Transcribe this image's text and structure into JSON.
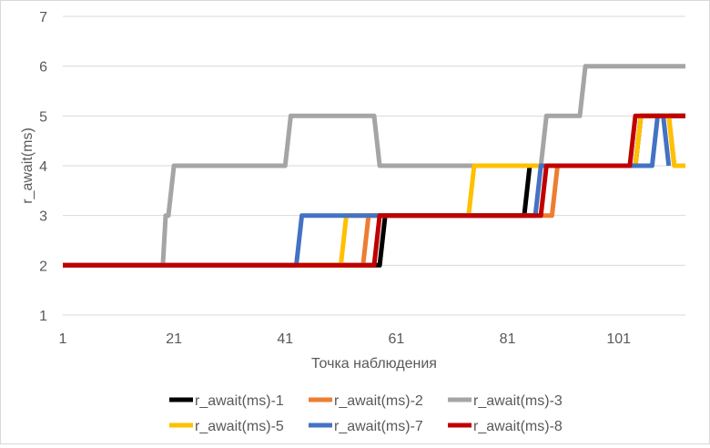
{
  "chart_data": {
    "type": "line",
    "title": "",
    "xlabel": "Точка наблюдения",
    "ylabel": "r_await(ms)",
    "xlim": [
      1,
      113
    ],
    "ylim": [
      1,
      7
    ],
    "x_ticks": [
      1,
      21,
      41,
      61,
      81,
      101
    ],
    "y_ticks": [
      1,
      2,
      3,
      4,
      5,
      6,
      7
    ],
    "grid": "horizontal",
    "legend_position": "bottom",
    "series": [
      {
        "name": "r_await(ms)-1",
        "color": "#000000",
        "points": [
          [
            1,
            2
          ],
          [
            58,
            2
          ],
          [
            59,
            3
          ],
          [
            84,
            3
          ],
          [
            85,
            4
          ],
          [
            104,
            4
          ],
          [
            105,
            5
          ],
          [
            113,
            5
          ]
        ]
      },
      {
        "name": "r_await(ms)-2",
        "color": "#ED7D31",
        "points": [
          [
            1,
            2
          ],
          [
            55,
            2
          ],
          [
            56,
            3
          ],
          [
            89,
            3
          ],
          [
            90,
            4
          ],
          [
            104,
            4
          ],
          [
            105,
            5
          ],
          [
            110,
            5
          ],
          [
            111,
            4
          ]
        ]
      },
      {
        "name": "r_await(ms)-3",
        "color": "#A5A5A5",
        "points": [
          [
            1,
            2
          ],
          [
            19,
            2
          ],
          [
            19.5,
            3
          ],
          [
            20,
            3
          ],
          [
            21,
            4
          ],
          [
            41,
            4
          ],
          [
            42,
            5
          ],
          [
            57,
            5
          ],
          [
            58,
            4
          ],
          [
            87,
            4
          ],
          [
            88,
            5
          ],
          [
            94,
            5
          ],
          [
            95,
            6
          ],
          [
            113,
            6
          ]
        ]
      },
      {
        "name": "r_await(ms)-5",
        "color": "#FFC000",
        "points": [
          [
            1,
            2
          ],
          [
            51,
            2
          ],
          [
            52,
            3
          ],
          [
            74,
            3
          ],
          [
            75,
            4
          ],
          [
            104,
            4
          ],
          [
            105,
            5
          ],
          [
            110,
            5
          ],
          [
            111,
            4
          ],
          [
            113,
            4
          ]
        ]
      },
      {
        "name": "r_await(ms)-7",
        "color": "#4472C4",
        "points": [
          [
            1,
            2
          ],
          [
            43,
            2
          ],
          [
            44,
            3
          ],
          [
            86,
            3
          ],
          [
            87,
            4
          ],
          [
            107,
            4
          ],
          [
            108,
            5
          ],
          [
            109,
            5
          ],
          [
            110,
            4
          ]
        ]
      },
      {
        "name": "r_await(ms)-8",
        "color": "#C00000",
        "points": [
          [
            1,
            2
          ],
          [
            57,
            2
          ],
          [
            58,
            3
          ],
          [
            87,
            3
          ],
          [
            88,
            4
          ],
          [
            103,
            4
          ],
          [
            104,
            5
          ],
          [
            113,
            5
          ]
        ]
      }
    ]
  }
}
